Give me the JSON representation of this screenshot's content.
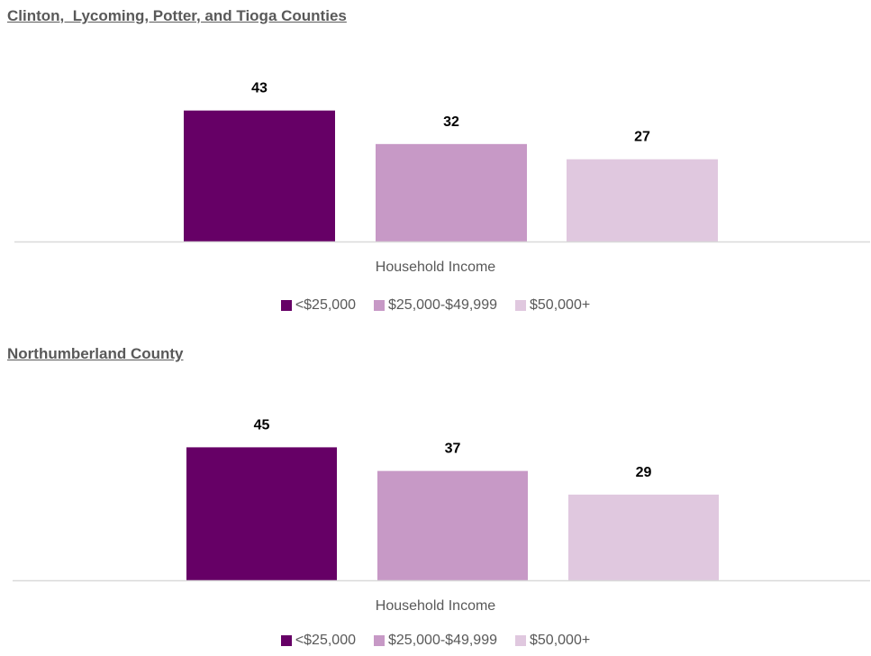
{
  "chart_data": [
    {
      "type": "bar",
      "title": "Clinton,  Lycoming, Potter, and Tioga Counties",
      "xlabel": "Household Income",
      "ylabel": "",
      "ylim": [
        0,
        50
      ],
      "grid": false,
      "legend_position": "bottom",
      "series": [
        {
          "name": "<$25,000",
          "values": [
            43
          ],
          "color": "#660066"
        },
        {
          "name": "$25,000-$49,999",
          "values": [
            32
          ],
          "color": "#c799c6"
        },
        {
          "name": "$50,000+",
          "values": [
            27
          ],
          "color": "#e0c8df"
        }
      ]
    },
    {
      "type": "bar",
      "title": "Northumberland County",
      "xlabel": "Household Income",
      "ylabel": "",
      "ylim": [
        0,
        50
      ],
      "grid": false,
      "legend_position": "bottom",
      "series": [
        {
          "name": "<$25,000",
          "values": [
            45
          ],
          "color": "#660066"
        },
        {
          "name": "$25,000-$49,999",
          "values": [
            37
          ],
          "color": "#c799c6"
        },
        {
          "name": "$50,000+",
          "values": [
            29
          ],
          "color": "#e0c8df"
        }
      ]
    }
  ],
  "colors": {
    "axis_line": "#d9d9d9",
    "label_text": "#000000",
    "muted_text": "#595959"
  }
}
